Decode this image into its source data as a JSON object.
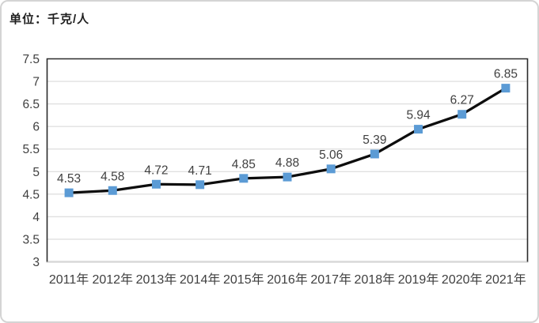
{
  "unit_label": "单位：千克/人",
  "chart_data": {
    "type": "line",
    "unit": "千克/人",
    "categories": [
      "2011年",
      "2012年",
      "2013年",
      "2014年",
      "2015年",
      "2016年",
      "2017年",
      "2018年",
      "2019年",
      "2020年",
      "2021年"
    ],
    "values": [
      4.53,
      4.58,
      4.72,
      4.71,
      4.85,
      4.88,
      5.06,
      5.39,
      5.94,
      6.27,
      6.85
    ],
    "data_labels": [
      "4.53",
      "4.58",
      "4.72",
      "4.71",
      "4.85",
      "4.88",
      "5.06",
      "5.39",
      "5.94",
      "6.27",
      "6.85"
    ],
    "ylim": [
      3,
      7.5
    ],
    "ystep": 0.5,
    "y_tick_labels": [
      "3",
      "3.5",
      "4",
      "4.5",
      "5",
      "5.5",
      "6",
      "6.5",
      "7",
      "7.5"
    ],
    "grid": true,
    "legend": "none",
    "marker_shape": "square",
    "colors": {
      "line": "#0d0d0d",
      "marker": "#5b9bd5",
      "gridline": "#e0e0e0",
      "plot_border": "#2b2b2b",
      "bottom_axis": "#d9d9d9",
      "tick_text": "#3f3f3f",
      "data_label_text": "#404040"
    }
  }
}
